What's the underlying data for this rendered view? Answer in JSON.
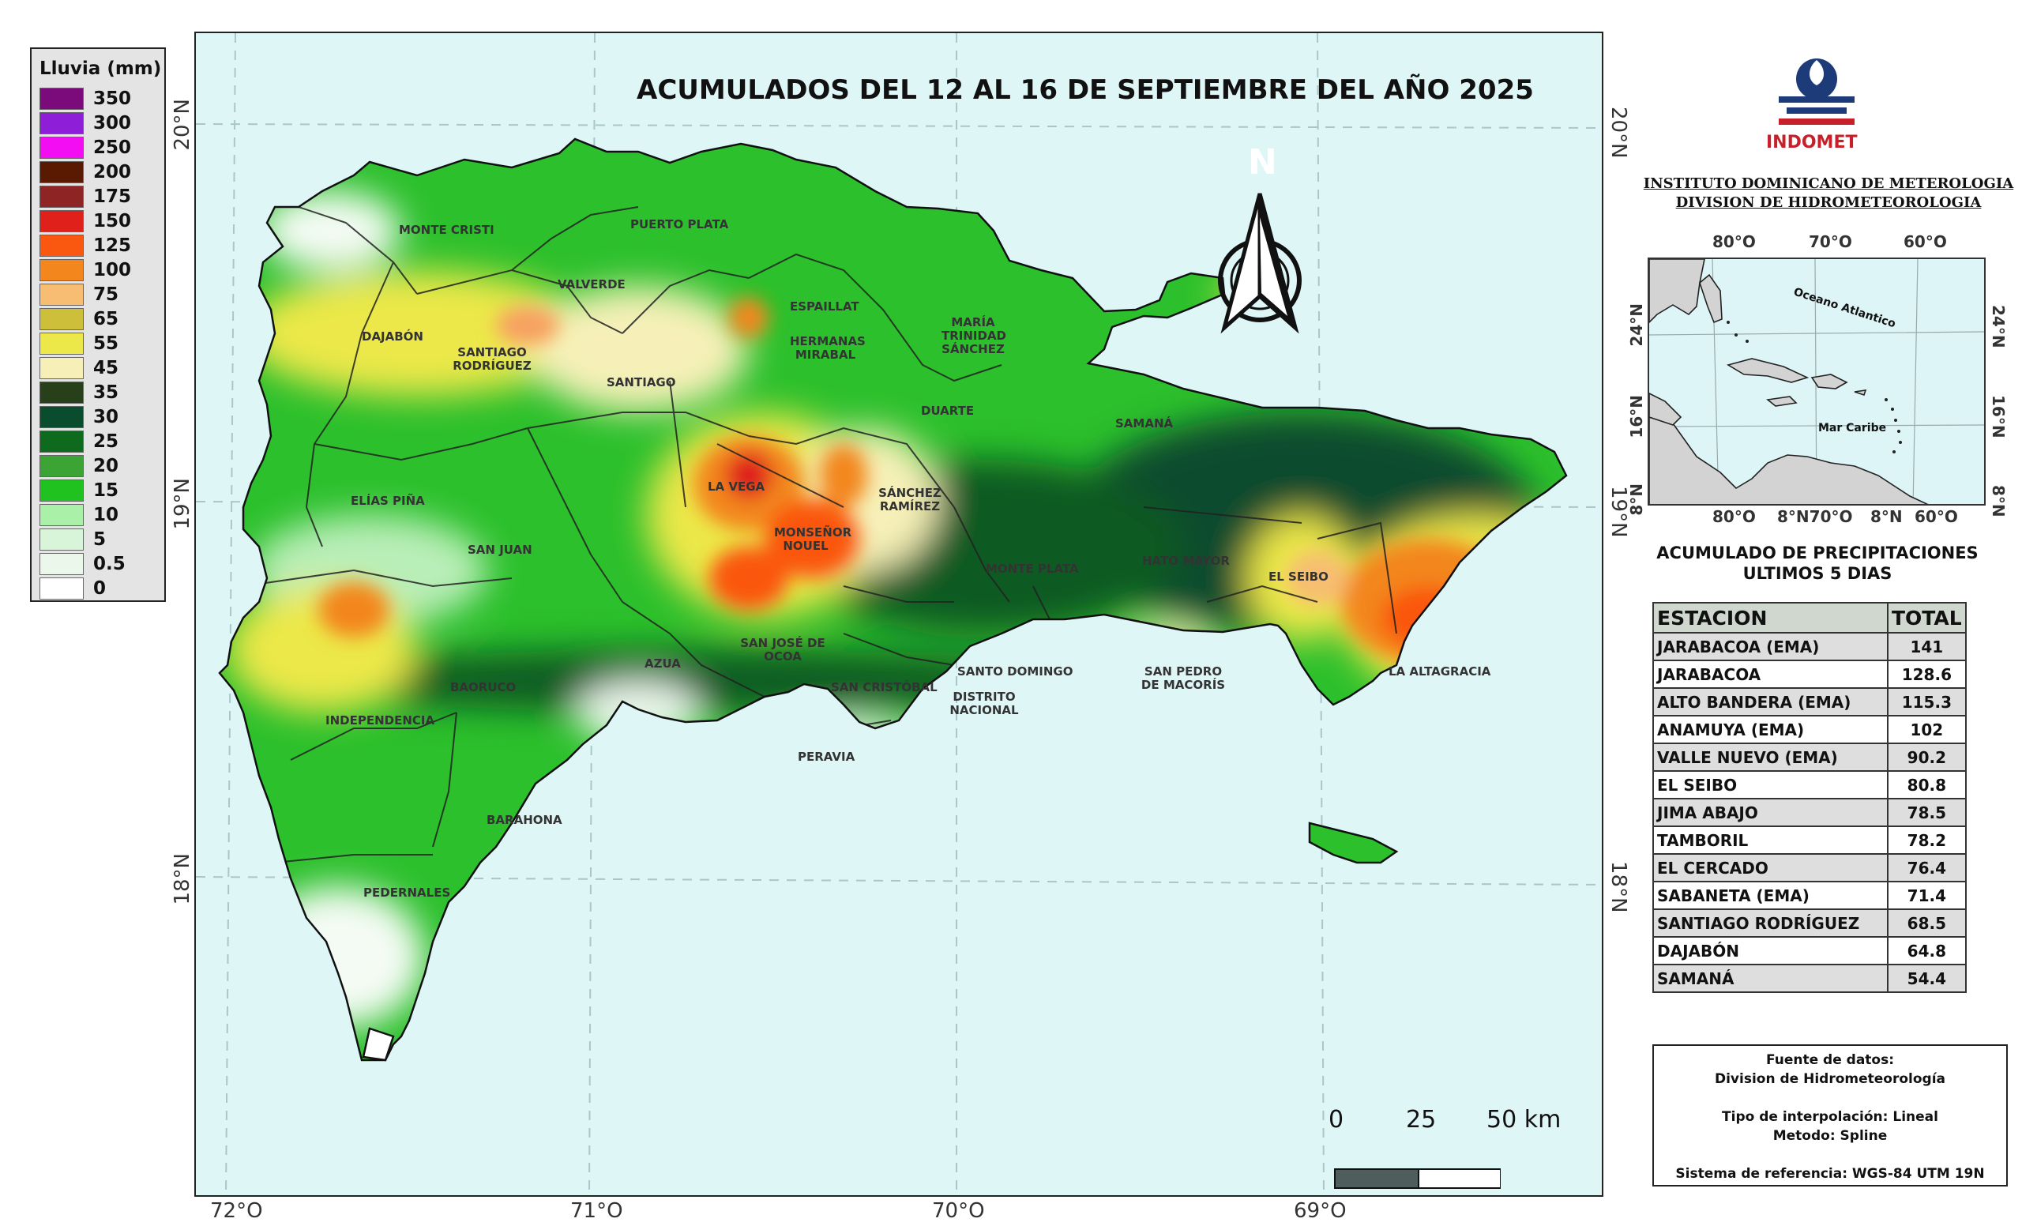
{
  "legend": {
    "title": "Lluvia (mm)",
    "items": [
      {
        "label": "350",
        "color": "#7b0a7a"
      },
      {
        "label": "300",
        "color": "#8e1ed8"
      },
      {
        "label": "250",
        "color": "#f20df2"
      },
      {
        "label": "200",
        "color": "#5a1a02"
      },
      {
        "label": "175",
        "color": "#8e2424"
      },
      {
        "label": "150",
        "color": "#e0201a"
      },
      {
        "label": "125",
        "color": "#fa5710"
      },
      {
        "label": "100",
        "color": "#f3861c"
      },
      {
        "label": "75",
        "color": "#f7bd72"
      },
      {
        "label": "65",
        "color": "#cdbf3a"
      },
      {
        "label": "55",
        "color": "#ece84a"
      },
      {
        "label": "45",
        "color": "#f6f0b8"
      },
      {
        "label": "35",
        "color": "#27401a"
      },
      {
        "label": "30",
        "color": "#0a4c2e"
      },
      {
        "label": "25",
        "color": "#0e6a1d"
      },
      {
        "label": "20",
        "color": "#3ba434"
      },
      {
        "label": "15",
        "color": "#1fc21f"
      },
      {
        "label": "10",
        "color": "#aaf0a9"
      },
      {
        "label": "5",
        "color": "#d9f5d9"
      },
      {
        "label": "0.5",
        "color": "#ebf7eb"
      },
      {
        "label": "0",
        "color": "#ffffff"
      }
    ]
  },
  "map": {
    "title": "ACUMULADOS DEL 12 AL 16 DE SEPTIEMBRE DEL AÑO 2025",
    "lon_labels": [
      "72°O",
      "71°O",
      "70°O",
      "69°O"
    ],
    "lat_labels": [
      "20°N",
      "19°N",
      "18°N"
    ],
    "north_letter": "N",
    "scale": {
      "labels": [
        "0",
        "25",
        "50 km"
      ]
    },
    "provinces": [
      {
        "name": "MONTE CRISTI"
      },
      {
        "name": "PUERTO PLATA"
      },
      {
        "name": "VALVERDE"
      },
      {
        "name": "ESPAILLAT"
      },
      {
        "name": "DAJABÓN"
      },
      {
        "name": "SANTIAGO RODRÍGUEZ"
      },
      {
        "name": "HERMANAS MIRABAL"
      },
      {
        "name": "MARÍA TRINIDAD SÁNCHEZ"
      },
      {
        "name": "SANTIAGO"
      },
      {
        "name": "DUARTE"
      },
      {
        "name": "SAMANÁ"
      },
      {
        "name": "LA VEGA"
      },
      {
        "name": "SÁNCHEZ RAMÍREZ"
      },
      {
        "name": "ELÍAS PIÑA"
      },
      {
        "name": "MONSEÑOR NOUEL"
      },
      {
        "name": "SAN JUAN"
      },
      {
        "name": "MONTE PLATA"
      },
      {
        "name": "HATO MAYOR"
      },
      {
        "name": "EL SEIBO"
      },
      {
        "name": "SAN JOSÉ DE OCOA"
      },
      {
        "name": "AZUA"
      },
      {
        "name": "BAORUCO"
      },
      {
        "name": "SAN CRISTÓBAL"
      },
      {
        "name": "SANTO DOMINGO"
      },
      {
        "name": "SAN PEDRO DE MACORÍS"
      },
      {
        "name": "LA ALTAGRACIA"
      },
      {
        "name": "DISTRITO NACIONAL"
      },
      {
        "name": "INDEPENDENCIA"
      },
      {
        "name": "PERAVIA"
      },
      {
        "name": "BARAHONA"
      },
      {
        "name": "PEDERNALES"
      }
    ]
  },
  "institution": {
    "logo_text": "INDOMET",
    "name_line1": "INSTITUTO DOMINICANO DE METEROLOGIA",
    "name_line2": "DIVISION DE HIDROMETEOROLOGIA"
  },
  "inset": {
    "top_labels": [
      "80°O",
      "70°O",
      "60°O"
    ],
    "bottom_labels": [
      "80°O",
      "8°N70°O",
      "8°N",
      "60°O"
    ],
    "left_labels": [
      "24°N",
      "16°N",
      "8°N"
    ],
    "right_labels": [
      "24°N",
      "16°N",
      "8°N"
    ],
    "ocean_label": "Oceano Atlantico",
    "sea_label": "Mar Caribe"
  },
  "table": {
    "subtitle_line1": "ACUMULADO DE PRECIPITACIONES",
    "subtitle_line2": "ULTIMOS 5 DIAS",
    "headers": [
      "ESTACION",
      "TOTAL"
    ],
    "rows": [
      {
        "station": "JARABACOA (EMA)",
        "total": "141"
      },
      {
        "station": "JARABACOA",
        "total": "128.6"
      },
      {
        "station": "ALTO BANDERA (EMA)",
        "total": "115.3"
      },
      {
        "station": "ANAMUYA (EMA)",
        "total": "102"
      },
      {
        "station": "VALLE NUEVO (EMA)",
        "total": "90.2"
      },
      {
        "station": "EL SEIBO",
        "total": "80.8"
      },
      {
        "station": "JIMA ABAJO",
        "total": "78.5"
      },
      {
        "station": "TAMBORIL",
        "total": "78.2"
      },
      {
        "station": "EL CERCADO",
        "total": "76.4"
      },
      {
        "station": "SABANETA (EMA)",
        "total": "71.4"
      },
      {
        "station": "SANTIAGO RODRÍGUEZ",
        "total": "68.5"
      },
      {
        "station": "DAJABÓN",
        "total": "64.8"
      },
      {
        "station": "SAMANÁ",
        "total": "54.4"
      }
    ]
  },
  "sources": {
    "line1": "Fuente de datos:",
    "line2": "Division de Hidrometeorología",
    "line3": "Tipo de interpolación: Lineal",
    "line4": "Metodo: Spline",
    "line5": "Sistema de referencia: WGS-84 UTM 19N"
  }
}
